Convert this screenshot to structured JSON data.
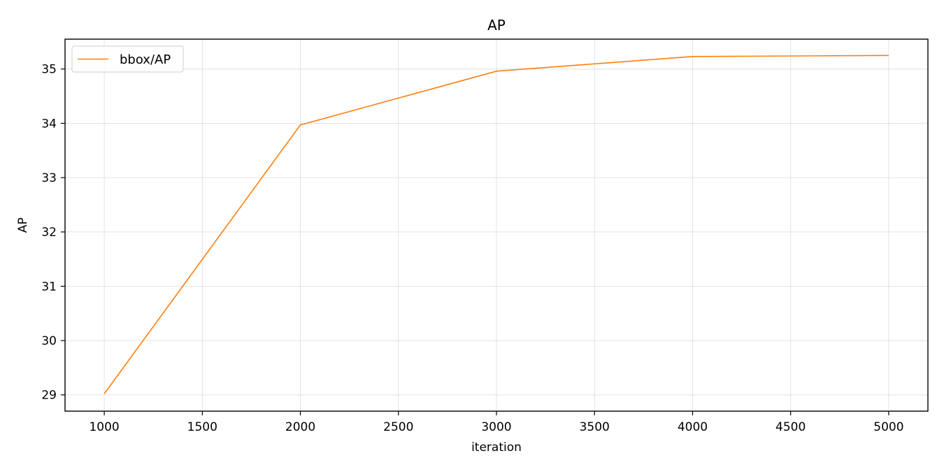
{
  "chart_data": {
    "type": "line",
    "title": "AP",
    "xlabel": "iteration",
    "ylabel": "AP",
    "xlim": [
      800,
      5200
    ],
    "ylim": [
      28.7,
      35.55
    ],
    "xticks": [
      1000,
      1500,
      2000,
      2500,
      3000,
      3500,
      4000,
      4500,
      5000
    ],
    "yticks": [
      29,
      30,
      31,
      32,
      33,
      34,
      35
    ],
    "grid": true,
    "legend_position": "top-left",
    "series": [
      {
        "name": "bbox/AP",
        "color": "#ff7f0e",
        "x": [
          1000,
          2000,
          3000,
          4000,
          5000
        ],
        "y": [
          29.02,
          33.97,
          34.96,
          35.23,
          35.25
        ]
      }
    ]
  }
}
